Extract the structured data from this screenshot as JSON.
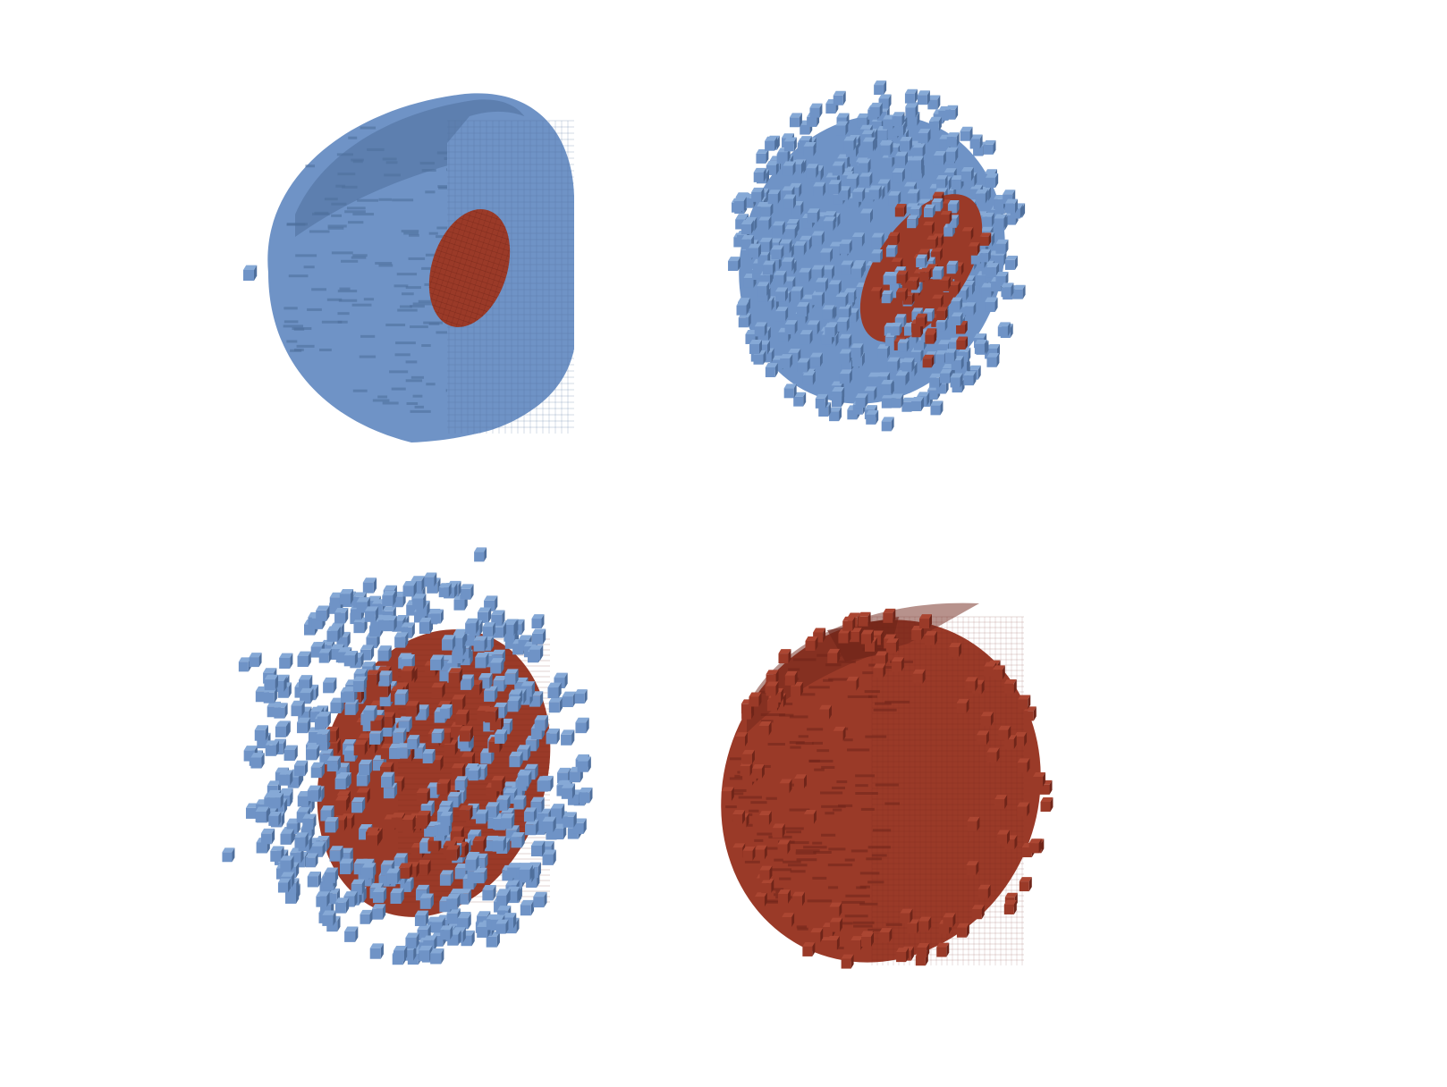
{
  "figure": {
    "background": "#ffffff",
    "colors": {
      "blue_face": "#6f93c6",
      "blue_top": "#86a9d6",
      "blue_shade": "#4f6f9c",
      "red_face": "#9a3a28",
      "red_top": "#ab4632",
      "red_shade": "#6f2519"
    },
    "panels": [
      {
        "id": "top-left",
        "description_shape": "cut-away-ellipsoid",
        "materials": {
          "outer": "blue",
          "core": "red"
        }
      },
      {
        "id": "top-right",
        "description_shape": "noisy-ellipsoid",
        "materials": {
          "outer": "blue",
          "core": "red"
        }
      },
      {
        "id": "bottom-left",
        "description_shape": "scattered-ellipsoid",
        "materials": {
          "outer": "blue",
          "core": "red"
        }
      },
      {
        "id": "bottom-right",
        "description_shape": "solid-ellipsoid",
        "materials": {
          "outer": "red"
        }
      }
    ]
  }
}
